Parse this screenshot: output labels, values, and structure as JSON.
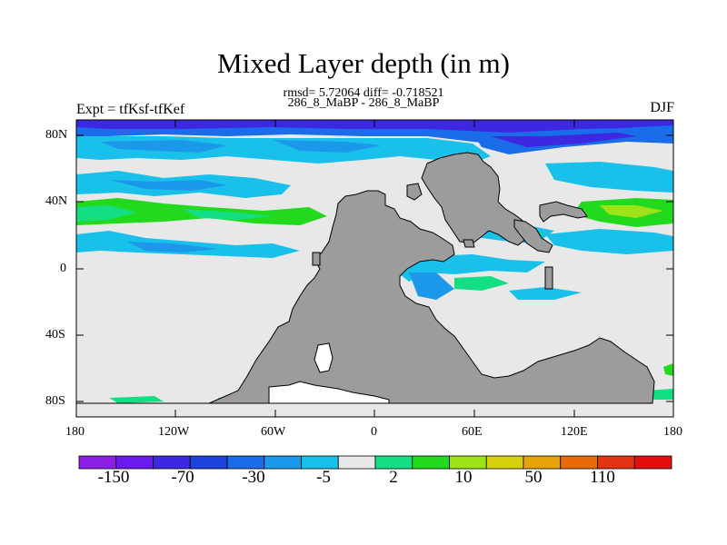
{
  "header": {
    "title": "Mixed Layer depth (in m)",
    "rmsd_line": "rmsd= 5.72064 diff= -0.718521",
    "subtitle": "286_8_MaBP - 286_8_MaBP",
    "left_label": "Expt = tfKsf-tfKef",
    "right_label": "DJF"
  },
  "axes": {
    "lat_ticks": [
      "80N",
      "40N",
      "0",
      "40S",
      "80S"
    ],
    "lon_ticks": [
      "180",
      "120W",
      "60W",
      "0",
      "60E",
      "120E",
      "180"
    ]
  },
  "colorbar": {
    "colors": [
      "#8c1ee6",
      "#6a1aee",
      "#3d28e2",
      "#1c43dc",
      "#1a6ce8",
      "#1c98eb",
      "#19c0ea",
      "#e8e8e8",
      "#14de84",
      "#23d91e",
      "#9ee318",
      "#d6d10f",
      "#e8a20a",
      "#e86a0a",
      "#e23412",
      "#e40e0e"
    ],
    "labels": [
      "-150",
      "-70",
      "-30",
      "-5",
      "2",
      "10",
      "50",
      "110"
    ]
  },
  "legend_meaning": {
    "land_color": "#9c9c9c",
    "zero_color": "#e8e8e8"
  }
}
